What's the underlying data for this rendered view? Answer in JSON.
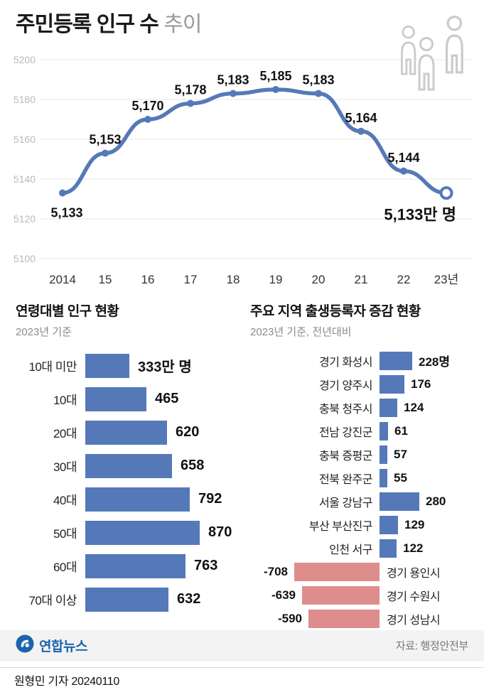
{
  "header": {
    "title_bold": "주민등록 인구 수",
    "title_light": "추이"
  },
  "footer": {
    "brand": "연합뉴스",
    "source": "자료: 행정안전부",
    "byline": "원형민 기자 20240110"
  },
  "colors": {
    "line_blue": "#5579b8",
    "bar_blue": "#5579b8",
    "bar_red": "#de8d8d",
    "axis_gray": "#b9b9b9",
    "grid_gray": "#e7e7e7",
    "brand_blue": "#1b64ad"
  },
  "chart_data": [
    {
      "type": "line",
      "title": "주민등록 인구 수 추이",
      "x": [
        "2014",
        "15",
        "16",
        "17",
        "18",
        "19",
        "20",
        "21",
        "22",
        "23년"
      ],
      "values": [
        5133,
        5153,
        5170,
        5178,
        5183,
        5185,
        5183,
        5164,
        5144,
        5133
      ],
      "ylim": [
        5100,
        5200
      ],
      "yticks": [
        5200,
        5180,
        5160,
        5140,
        5120,
        5100
      ],
      "unit": "만 명",
      "last_label": "5,133만 명",
      "grid": true,
      "legend": "none"
    },
    {
      "type": "bar",
      "title": "연령대별 인구 현황",
      "subtitle": "2023년 기준",
      "orientation": "horizontal",
      "categories": [
        "10대 미만",
        "10대",
        "20대",
        "30대",
        "40대",
        "50대",
        "60대",
        "70대 이상"
      ],
      "values": [
        333,
        465,
        620,
        658,
        792,
        870,
        763,
        632
      ],
      "value_labels": [
        "333만 명",
        "465",
        "620",
        "658",
        "792",
        "870",
        "763",
        "632"
      ],
      "unit": "만 명"
    },
    {
      "type": "bar",
      "title": "주요 지역 출생등록자 증감 현황",
      "subtitle": "2023년 기준, 전년대비",
      "orientation": "horizontal-diverging",
      "categories": [
        "경기 화성시",
        "경기 양주시",
        "충북 청주시",
        "전남 강진군",
        "충북 증평군",
        "전북 완주군",
        "서울 강남구",
        "부산 부산진구",
        "인천 서구",
        "경기 용인시",
        "경기 수원시",
        "경기 성남시"
      ],
      "values": [
        228,
        176,
        124,
        61,
        57,
        55,
        280,
        129,
        122,
        -708,
        -639,
        -590
      ],
      "value_labels": [
        "228명",
        "176",
        "124",
        "61",
        "57",
        "55",
        "280",
        "129",
        "122",
        "-708",
        "-639",
        "-590"
      ],
      "unit": "명"
    }
  ]
}
